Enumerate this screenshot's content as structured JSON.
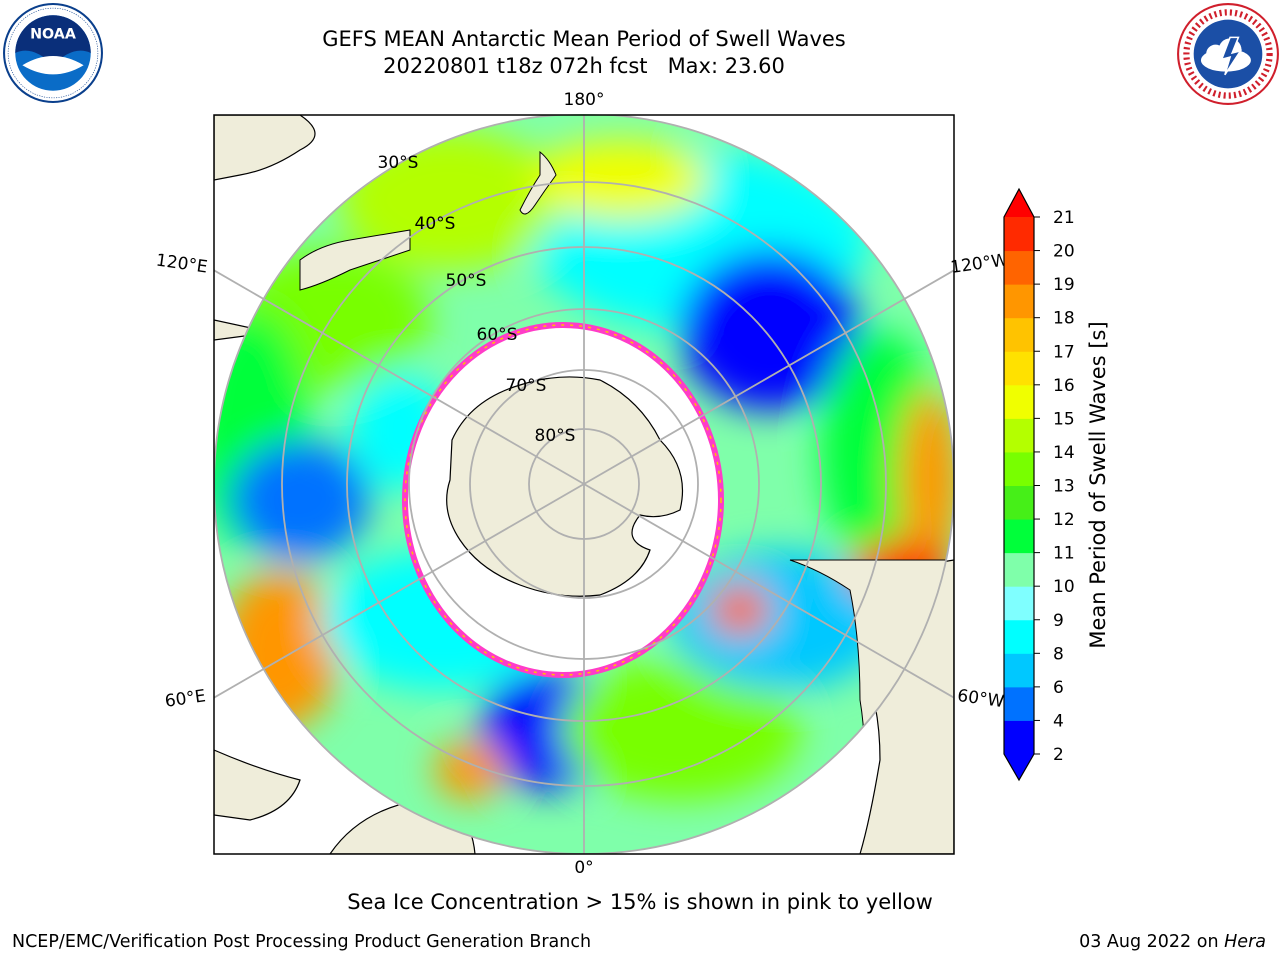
{
  "header": {
    "title_line1": "GEFS MEAN Antarctic Mean Period of Swell Waves",
    "title_line2": "20220801 t18z 072h fcst   Max: 23.60"
  },
  "map": {
    "projection": "south-polar-stereographic",
    "longitude_labels": [
      "180°",
      "120°E",
      "120°W",
      "60°E",
      "60°W",
      "0°"
    ],
    "latitude_labels": [
      "30°S",
      "40°S",
      "50°S",
      "60°S",
      "70°S",
      "80°S"
    ]
  },
  "colorbar": {
    "title": "Mean Period of Swell Waves [s]",
    "ticks": [
      "2",
      "4",
      "6",
      "8",
      "9",
      "10",
      "11",
      "12",
      "13",
      "14",
      "15",
      "16",
      "17",
      "18",
      "19",
      "20",
      "21"
    ],
    "colors": [
      "#0000ff",
      "#0072ff",
      "#00c8ff",
      "#00ffff",
      "#7fffff",
      "#7fffaa",
      "#00ff3a",
      "#46ef18",
      "#78ff00",
      "#b4ff00",
      "#f0ff00",
      "#ffe100",
      "#ffc300",
      "#ff9600",
      "#ff6400",
      "#ff2a00"
    ],
    "under_color": "#0000ff",
    "over_color": "#ff0000"
  },
  "footer": {
    "note": "Sea Ice Concentration > 15% is shown in pink to yellow",
    "credit": "NCEP/EMC/Verification Post Processing Product Generation Branch",
    "date": "03 Aug 2022 on",
    "host": "Hera"
  },
  "logos": {
    "left": "noaa-logo",
    "right": "national-weather-service-logo"
  }
}
